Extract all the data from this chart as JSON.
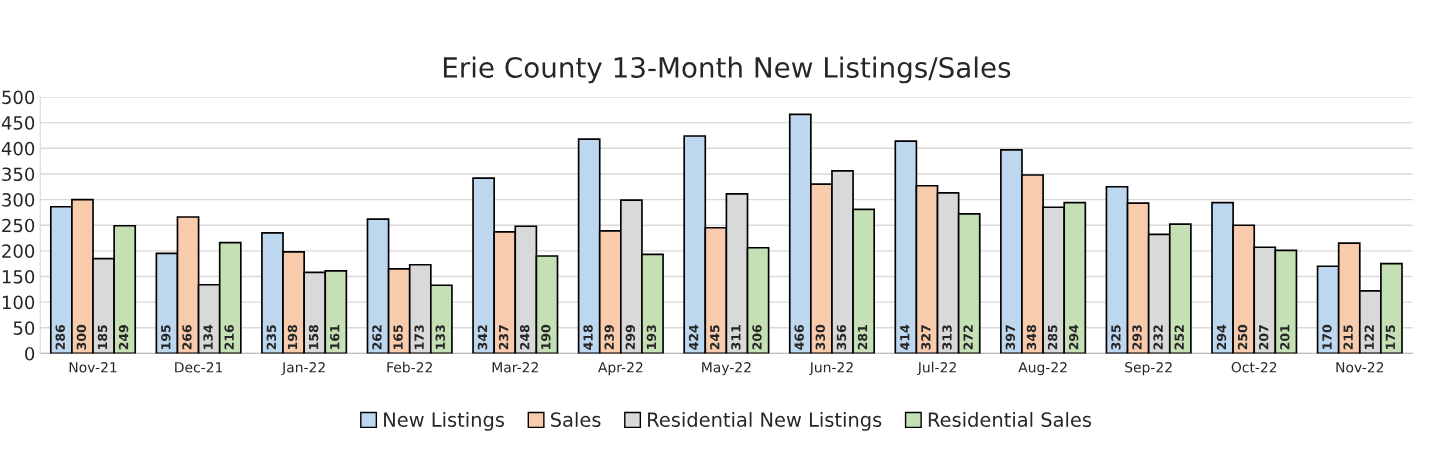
{
  "chart_data": {
    "type": "bar",
    "title": "Erie County 13-Month New Listings/Sales",
    "categories": [
      "Nov-21",
      "Dec-21",
      "Jan-22",
      "Feb-22",
      "Mar-22",
      "Apr-22",
      "May-22",
      "Jun-22",
      "Jul-22",
      "Aug-22",
      "Sep-22",
      "Oct-22",
      "Nov-22"
    ],
    "series": [
      {
        "name": "New Listings",
        "color": "#bdd7ee",
        "values": [
          286,
          195,
          235,
          262,
          342,
          418,
          424,
          466,
          414,
          397,
          325,
          294,
          170
        ]
      },
      {
        "name": "Sales",
        "color": "#f8cbad",
        "values": [
          300,
          266,
          198,
          165,
          237,
          239,
          245,
          330,
          327,
          348,
          293,
          250,
          215
        ]
      },
      {
        "name": "Residential New Listings",
        "color": "#d9d9d9",
        "values": [
          185,
          134,
          158,
          173,
          248,
          299,
          311,
          356,
          313,
          285,
          232,
          207,
          122
        ]
      },
      {
        "name": "Residential Sales",
        "color": "#c5e0b4",
        "values": [
          249,
          216,
          161,
          133,
          190,
          193,
          206,
          281,
          272,
          294,
          252,
          201,
          175
        ]
      }
    ],
    "ylim": [
      0,
      500
    ],
    "yticks": [
      0,
      50,
      100,
      150,
      200,
      250,
      300,
      350,
      400,
      450,
      500
    ],
    "grid": "y",
    "legend": "bottom",
    "data_labels": true
  }
}
